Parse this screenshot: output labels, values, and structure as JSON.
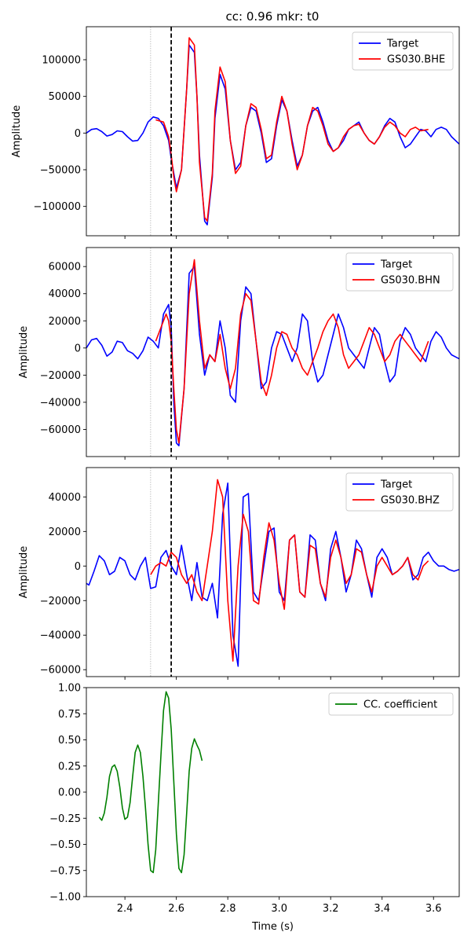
{
  "title": "cc: 0.96 mkr: t0",
  "colors": {
    "target": "#0000ff",
    "synthetic": "#ff0000",
    "cc": "#008000",
    "marker": "#000000"
  },
  "chart_data": [
    {
      "type": "line",
      "ylabel": "Amplitude",
      "xlim": [
        2.25,
        3.7
      ],
      "ylim": [
        -140000,
        145000
      ],
      "yticks": [
        -100000,
        -50000,
        0,
        50000,
        100000
      ],
      "legend": "top-right",
      "marker_t0": 2.58,
      "window_start": 2.5,
      "series": [
        {
          "name": "Target",
          "color": "#0000ff",
          "x": [
            2.25,
            2.27,
            2.29,
            2.31,
            2.33,
            2.35,
            2.37,
            2.39,
            2.41,
            2.43,
            2.45,
            2.47,
            2.49,
            2.51,
            2.53,
            2.55,
            2.57,
            2.58,
            2.59,
            2.6,
            2.62,
            2.64,
            2.65,
            2.67,
            2.68,
            2.69,
            2.71,
            2.72,
            2.74,
            2.75,
            2.77,
            2.79,
            2.81,
            2.83,
            2.85,
            2.87,
            2.89,
            2.91,
            2.93,
            2.95,
            2.97,
            2.99,
            3.01,
            3.03,
            3.05,
            3.07,
            3.09,
            3.11,
            3.13,
            3.15,
            3.17,
            3.19,
            3.21,
            3.23,
            3.25,
            3.27,
            3.29,
            3.31,
            3.33,
            3.35,
            3.37,
            3.39,
            3.41,
            3.43,
            3.45,
            3.47,
            3.49,
            3.51,
            3.53,
            3.55,
            3.57,
            3.59,
            3.61,
            3.63,
            3.65,
            3.67,
            3.7
          ],
          "y": [
            0,
            5000,
            6000,
            2000,
            -4000,
            -2000,
            3000,
            2000,
            -5000,
            -11000,
            -10000,
            0,
            15000,
            22000,
            20000,
            10000,
            -10000,
            -35000,
            -55000,
            -75000,
            -50000,
            60000,
            120000,
            110000,
            50000,
            -30000,
            -120000,
            -125000,
            -60000,
            20000,
            80000,
            60000,
            -10000,
            -50000,
            -40000,
            10000,
            35000,
            30000,
            0,
            -40000,
            -35000,
            10000,
            45000,
            30000,
            -10000,
            -45000,
            -30000,
            10000,
            30000,
            35000,
            15000,
            -10000,
            -25000,
            -20000,
            -10000,
            5000,
            10000,
            15000,
            0,
            -10000,
            -15000,
            -5000,
            10000,
            20000,
            15000,
            -5000,
            -20000,
            -15000,
            -5000,
            5000,
            3000,
            -5000,
            5000,
            8000,
            5000,
            -5000,
            -15000
          ]
        },
        {
          "name": "GS030.BHE",
          "color": "#ff0000",
          "x": [
            2.52,
            2.55,
            2.57,
            2.58,
            2.59,
            2.6,
            2.62,
            2.64,
            2.65,
            2.67,
            2.68,
            2.69,
            2.71,
            2.72,
            2.74,
            2.75,
            2.77,
            2.79,
            2.81,
            2.83,
            2.85,
            2.87,
            2.89,
            2.91,
            2.93,
            2.95,
            2.97,
            2.99,
            3.01,
            3.03,
            3.05,
            3.07,
            3.09,
            3.11,
            3.13,
            3.15,
            3.17,
            3.19,
            3.21,
            3.23,
            3.25,
            3.27,
            3.29,
            3.31,
            3.33,
            3.35,
            3.37,
            3.39,
            3.41,
            3.43,
            3.45,
            3.47,
            3.49,
            3.51,
            3.53,
            3.55,
            3.58
          ],
          "y": [
            18000,
            15000,
            -5000,
            -30000,
            -60000,
            -80000,
            -50000,
            60000,
            130000,
            120000,
            50000,
            -40000,
            -115000,
            -120000,
            -55000,
            30000,
            90000,
            70000,
            -10000,
            -55000,
            -45000,
            10000,
            40000,
            35000,
            5000,
            -35000,
            -30000,
            15000,
            50000,
            30000,
            -15000,
            -50000,
            -30000,
            10000,
            35000,
            30000,
            10000,
            -15000,
            -25000,
            -20000,
            -5000,
            5000,
            10000,
            12000,
            0,
            -10000,
            -15000,
            -5000,
            8000,
            15000,
            10000,
            0,
            -5000,
            5000,
            8000,
            3000,
            5000
          ]
        }
      ]
    },
    {
      "type": "line",
      "ylabel": "Amplitude",
      "xlim": [
        2.25,
        3.7
      ],
      "ylim": [
        -80000,
        74000
      ],
      "yticks": [
        -60000,
        -40000,
        -20000,
        0,
        20000,
        40000,
        60000
      ],
      "legend": "top-right",
      "marker_t0": 2.58,
      "window_start": 2.5,
      "series": [
        {
          "name": "Target",
          "color": "#0000ff",
          "x": [
            2.25,
            2.27,
            2.29,
            2.31,
            2.33,
            2.35,
            2.37,
            2.39,
            2.41,
            2.43,
            2.45,
            2.47,
            2.49,
            2.51,
            2.53,
            2.55,
            2.57,
            2.58,
            2.59,
            2.6,
            2.61,
            2.63,
            2.65,
            2.67,
            2.69,
            2.71,
            2.73,
            2.75,
            2.77,
            2.79,
            2.81,
            2.83,
            2.85,
            2.87,
            2.89,
            2.91,
            2.93,
            2.95,
            2.97,
            2.99,
            3.01,
            3.03,
            3.05,
            3.07,
            3.09,
            3.11,
            3.13,
            3.15,
            3.17,
            3.19,
            3.21,
            3.23,
            3.25,
            3.27,
            3.29,
            3.31,
            3.33,
            3.35,
            3.37,
            3.39,
            3.41,
            3.43,
            3.45,
            3.47,
            3.49,
            3.51,
            3.53,
            3.55,
            3.57,
            3.59,
            3.61,
            3.63,
            3.65,
            3.67,
            3.7
          ],
          "y": [
            0,
            6000,
            7000,
            2000,
            -6000,
            -3000,
            5000,
            4000,
            -2000,
            -4000,
            -8000,
            -2000,
            8000,
            5000,
            0,
            25000,
            32000,
            15000,
            -40000,
            -70000,
            -72000,
            -30000,
            55000,
            60000,
            10000,
            -20000,
            -5000,
            -10000,
            20000,
            0,
            -35000,
            -40000,
            20000,
            45000,
            40000,
            5000,
            -30000,
            -25000,
            0,
            12000,
            10000,
            0,
            -10000,
            0,
            25000,
            20000,
            -10000,
            -25000,
            -20000,
            -5000,
            10000,
            25000,
            15000,
            0,
            -5000,
            -10000,
            -15000,
            0,
            15000,
            10000,
            -10000,
            -25000,
            -20000,
            5000,
            15000,
            10000,
            0,
            -5000,
            -10000,
            5000,
            12000,
            8000,
            0,
            -5000,
            -8000
          ]
        },
        {
          "name": "GS030.BHN",
          "color": "#ff0000",
          "x": [
            2.52,
            2.54,
            2.56,
            2.57,
            2.58,
            2.59,
            2.6,
            2.61,
            2.63,
            2.65,
            2.67,
            2.69,
            2.71,
            2.73,
            2.75,
            2.77,
            2.79,
            2.81,
            2.83,
            2.85,
            2.87,
            2.89,
            2.91,
            2.93,
            2.95,
            2.97,
            2.99,
            3.01,
            3.03,
            3.05,
            3.07,
            3.09,
            3.11,
            3.13,
            3.15,
            3.17,
            3.19,
            3.21,
            3.23,
            3.25,
            3.27,
            3.29,
            3.31,
            3.33,
            3.35,
            3.37,
            3.39,
            3.41,
            3.43,
            3.45,
            3.47,
            3.49,
            3.51,
            3.53,
            3.55,
            3.58
          ],
          "y": [
            5000,
            15000,
            25000,
            20000,
            5000,
            -30000,
            -60000,
            -70000,
            -30000,
            40000,
            65000,
            20000,
            -15000,
            -5000,
            -10000,
            10000,
            -15000,
            -30000,
            -15000,
            25000,
            40000,
            35000,
            5000,
            -25000,
            -35000,
            -20000,
            0,
            12000,
            10000,
            0,
            -5000,
            -15000,
            -20000,
            -10000,
            0,
            12000,
            20000,
            25000,
            15000,
            -5000,
            -15000,
            -10000,
            -5000,
            5000,
            15000,
            10000,
            0,
            -10000,
            -5000,
            5000,
            10000,
            5000,
            0,
            -5000,
            -10000,
            5000
          ]
        }
      ]
    },
    {
      "type": "line",
      "ylabel": "Amplitude",
      "xlim": [
        2.25,
        3.7
      ],
      "ylim": [
        -64000,
        57000
      ],
      "yticks": [
        -60000,
        -40000,
        -20000,
        0,
        20000,
        40000
      ],
      "legend": "top-right",
      "marker_t0": 2.58,
      "window_start": 2.5,
      "series": [
        {
          "name": "Target",
          "color": "#0000ff",
          "x": [
            2.25,
            2.26,
            2.28,
            2.3,
            2.32,
            2.34,
            2.36,
            2.38,
            2.4,
            2.42,
            2.44,
            2.46,
            2.48,
            2.5,
            2.52,
            2.54,
            2.56,
            2.58,
            2.6,
            2.62,
            2.64,
            2.66,
            2.68,
            2.7,
            2.72,
            2.74,
            2.76,
            2.78,
            2.8,
            2.82,
            2.84,
            2.86,
            2.88,
            2.9,
            2.92,
            2.94,
            2.96,
            2.98,
            3.0,
            3.02,
            3.04,
            3.06,
            3.08,
            3.1,
            3.12,
            3.14,
            3.16,
            3.18,
            3.2,
            3.22,
            3.24,
            3.26,
            3.28,
            3.3,
            3.32,
            3.34,
            3.36,
            3.38,
            3.4,
            3.42,
            3.44,
            3.46,
            3.48,
            3.5,
            3.52,
            3.54,
            3.56,
            3.58,
            3.6,
            3.62,
            3.64,
            3.66,
            3.68,
            3.7
          ],
          "y": [
            -10000,
            -11000,
            -3000,
            6000,
            3000,
            -5000,
            -3000,
            5000,
            3000,
            -5000,
            -8000,
            0,
            5000,
            -13000,
            -12000,
            5000,
            9000,
            0,
            -5000,
            12000,
            -5000,
            -20000,
            2000,
            -18000,
            -20000,
            -10000,
            -30000,
            30000,
            48000,
            -40000,
            -58000,
            40000,
            42000,
            -15000,
            -20000,
            0,
            20000,
            22000,
            -15000,
            -20000,
            15000,
            18000,
            -15000,
            -18000,
            18000,
            15000,
            -10000,
            -20000,
            10000,
            20000,
            5000,
            -15000,
            -5000,
            15000,
            10000,
            -5000,
            -18000,
            5000,
            10000,
            5000,
            -5000,
            -3000,
            0,
            5000,
            -8000,
            -5000,
            5000,
            8000,
            3000,
            0,
            0,
            -2000,
            -3000,
            -2000
          ]
        },
        {
          "name": "GS030.BHZ",
          "color": "#ff0000",
          "x": [
            2.5,
            2.52,
            2.54,
            2.56,
            2.58,
            2.6,
            2.62,
            2.64,
            2.66,
            2.68,
            2.7,
            2.72,
            2.74,
            2.76,
            2.78,
            2.8,
            2.82,
            2.84,
            2.86,
            2.88,
            2.9,
            2.92,
            2.94,
            2.96,
            2.98,
            3.0,
            3.02,
            3.04,
            3.06,
            3.08,
            3.1,
            3.12,
            3.14,
            3.16,
            3.18,
            3.2,
            3.22,
            3.24,
            3.26,
            3.28,
            3.3,
            3.32,
            3.34,
            3.36,
            3.38,
            3.4,
            3.42,
            3.44,
            3.46,
            3.48,
            3.5,
            3.52,
            3.54,
            3.56,
            3.58
          ],
          "y": [
            -5000,
            0,
            2000,
            0,
            8000,
            5000,
            -5000,
            -10000,
            -5000,
            -15000,
            -20000,
            0,
            20000,
            50000,
            40000,
            -20000,
            -55000,
            0,
            30000,
            20000,
            -20000,
            -22000,
            5000,
            25000,
            15000,
            -10000,
            -25000,
            15000,
            18000,
            -15000,
            -18000,
            12000,
            10000,
            -10000,
            -18000,
            5000,
            15000,
            5000,
            -10000,
            -5000,
            10000,
            8000,
            -5000,
            -15000,
            0,
            5000,
            0,
            -5000,
            -3000,
            0,
            5000,
            -5000,
            -8000,
            0,
            3000
          ]
        }
      ]
    },
    {
      "type": "line",
      "xlabel": "Time (s)",
      "xlim": [
        2.25,
        3.7
      ],
      "ylim": [
        -1.0,
        1.0
      ],
      "yticks": [
        -1.0,
        -0.75,
        -0.5,
        -0.25,
        0.0,
        0.25,
        0.5,
        0.75,
        1.0
      ],
      "xticks": [
        2.4,
        2.6,
        2.8,
        3.0,
        3.2,
        3.4,
        3.6
      ],
      "legend": "top-right",
      "series": [
        {
          "name": "CC. coefficient",
          "color": "#008000",
          "x": [
            2.3,
            2.31,
            2.32,
            2.33,
            2.34,
            2.35,
            2.36,
            2.37,
            2.38,
            2.39,
            2.4,
            2.41,
            2.42,
            2.43,
            2.44,
            2.45,
            2.46,
            2.47,
            2.48,
            2.49,
            2.5,
            2.51,
            2.52,
            2.53,
            2.54,
            2.55,
            2.56,
            2.57,
            2.58,
            2.59,
            2.6,
            2.61,
            2.62,
            2.63,
            2.64,
            2.65,
            2.66,
            2.67,
            2.68,
            2.69,
            2.7
          ],
          "y": [
            -0.24,
            -0.27,
            -0.2,
            -0.05,
            0.15,
            0.24,
            0.26,
            0.2,
            0.05,
            -0.15,
            -0.26,
            -0.24,
            -0.1,
            0.15,
            0.38,
            0.45,
            0.38,
            0.15,
            -0.15,
            -0.5,
            -0.75,
            -0.77,
            -0.55,
            -0.1,
            0.35,
            0.78,
            0.96,
            0.9,
            0.6,
            0.1,
            -0.4,
            -0.73,
            -0.77,
            -0.6,
            -0.2,
            0.2,
            0.42,
            0.51,
            0.45,
            0.4,
            0.3
          ]
        }
      ]
    }
  ]
}
